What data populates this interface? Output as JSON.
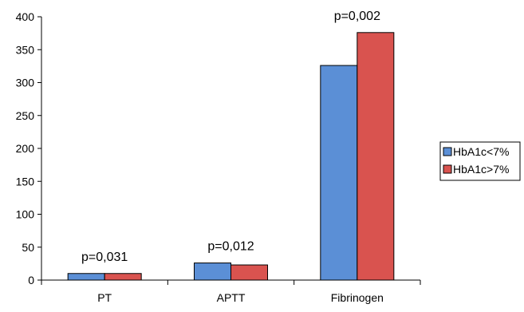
{
  "chart_data": {
    "type": "bar",
    "title": "",
    "xlabel": "",
    "ylabel": "",
    "categories": [
      "PT",
      "APTT",
      "Fibrinogen"
    ],
    "series": [
      {
        "name": "HbA1c<7%",
        "color": "#5b8fd6",
        "values": [
          10,
          26,
          326
        ]
      },
      {
        "name": "HbA1c>7%",
        "color": "#d9534f",
        "values": [
          10,
          23,
          376
        ]
      }
    ],
    "ylim": [
      0,
      400
    ],
    "yticks": [
      "0",
      "50",
      "100",
      "150",
      "200",
      "250",
      "300",
      "350",
      "400"
    ],
    "annotations": [
      {
        "category": "PT",
        "text": "p=0,031"
      },
      {
        "category": "APTT",
        "text": "p=0,012"
      },
      {
        "category": "Fibrinogen",
        "text": "p=0,002"
      }
    ],
    "grid": false,
    "legend_position": "right"
  }
}
